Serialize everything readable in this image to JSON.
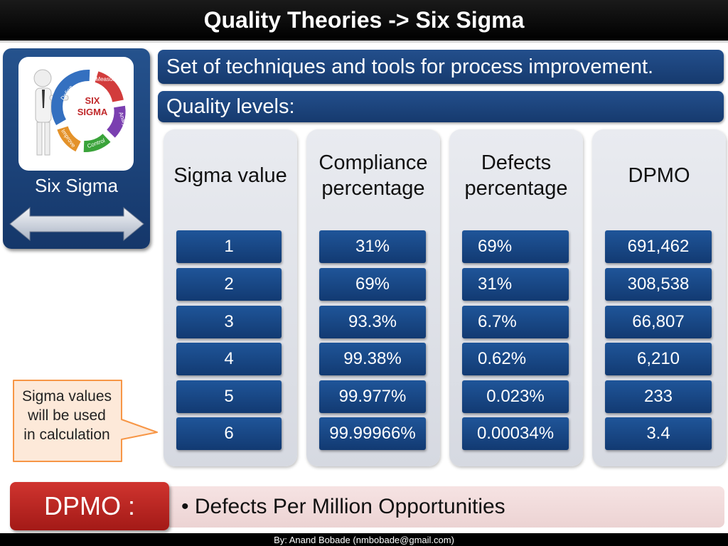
{
  "title": "Quality Theories -> Six Sigma",
  "left_panel": {
    "logo_word_1": "SIX",
    "logo_word_2": "SIGMA",
    "cycle_steps": [
      "Measure",
      "Analyze",
      "Control",
      "Improve",
      "Define"
    ],
    "caption": "Six Sigma",
    "icon": "double-arrow-icon"
  },
  "description": "Set of techniques and tools for process improvement.",
  "quality_levels_label": "Quality levels:",
  "columns": [
    {
      "header_line1": "Sigma value",
      "header_line2": "",
      "values": [
        "1",
        "2",
        "3",
        "4",
        "5",
        "6"
      ]
    },
    {
      "header_line1": "Compliance",
      "header_line2": "percentage",
      "values": [
        "31%",
        "69%",
        "93.3%",
        "99.38%",
        "99.977%",
        "99.99966%"
      ]
    },
    {
      "header_line1": "Defects",
      "header_line2": "percentage",
      "values": [
        "69%",
        "31%",
        "6.7%",
        "0.62%",
        "0.023%",
        "0.00034%"
      ]
    },
    {
      "header_line1": "DPMO",
      "header_line2": "",
      "values": [
        "691,462",
        "308,538",
        "66,807",
        "6,210",
        "233",
        "3.4"
      ]
    }
  ],
  "callout": {
    "line1": "Sigma values",
    "line2": "will be used",
    "line3": "in calculation"
  },
  "dpmo": {
    "label": "DPMO  :",
    "definition": "• Defects Per Million Opportunities"
  },
  "footer": "By: Anand Bobade (nmbobade@gmail.com)",
  "colors": {
    "title_bg": "#000000",
    "panel_blue": "#1f4a85",
    "cell_blue": "#1a4b8c",
    "column_bg": "#e1e4ea",
    "dpmo_red": "#c0282a",
    "dpmo_bar": "#f2dcdb",
    "callout_fill": "#fde9d9",
    "callout_border": "#f79646"
  }
}
